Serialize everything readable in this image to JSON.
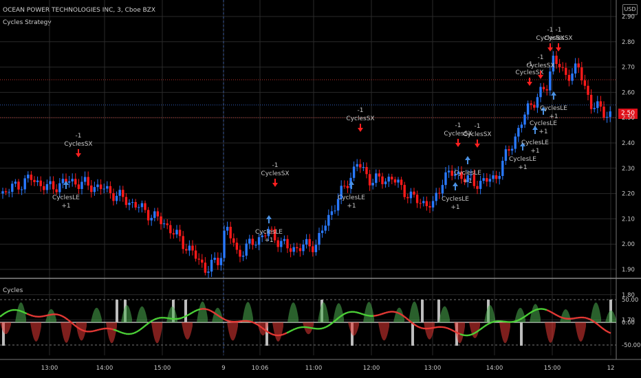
{
  "header": {
    "title": "OCEAN POWER TECHNOLOGIES INC, 3, Cboe BZX",
    "strategy": "Cycles Strategy",
    "currency_button": "USD"
  },
  "price_axis": {
    "ticks": [
      "2.90",
      "2.80",
      "2.70",
      "2.60",
      "2.50",
      "2.40",
      "2.30",
      "2.20",
      "2.10",
      "2.00",
      "1.90",
      "1.80",
      "1.70"
    ],
    "current_price": "2.50",
    "current_price_color": "#e0101a"
  },
  "time_axis": {
    "ticks": [
      "13:00",
      "14:00",
      "15:00",
      "9",
      "10:06",
      "11:00",
      "12:00",
      "13:00",
      "14:00",
      "15:00",
      "12"
    ]
  },
  "indicator": {
    "name": "Cycles",
    "ticks": [
      "50.00",
      "0.00",
      "-50.00"
    ]
  },
  "signals": [
    {
      "kind": "entry",
      "label": "CyclesLE",
      "qty": "+1"
    },
    {
      "kind": "exit",
      "label": "CyclesSX",
      "qty": "-1"
    },
    {
      "kind": "exit",
      "label": "CyclesSX",
      "qty": "-1"
    },
    {
      "kind": "entry",
      "label": "CyclesLE",
      "qty": "+1"
    },
    {
      "kind": "exit",
      "label": "CyclesSX",
      "qty": "-1"
    },
    {
      "kind": "entry",
      "label": "CyclesLE",
      "qty": "+1"
    },
    {
      "kind": "entry",
      "label": "CyclesLE",
      "qty": "+1"
    },
    {
      "kind": "exit",
      "label": "CyclesSX",
      "qty": "-1"
    },
    {
      "kind": "entry",
      "label": "CyclesLE",
      "qty": "+1"
    },
    {
      "kind": "exit",
      "label": "CyclesSX",
      "qty": "-1"
    },
    {
      "kind": "exit",
      "label": "CyclesSX",
      "qty": "-1"
    },
    {
      "kind": "entry",
      "label": "CyclesLE",
      "qty": "+1"
    },
    {
      "kind": "entry",
      "label": "CyclesLE",
      "qty": "+1"
    },
    {
      "kind": "exit",
      "label": "CyclesSX",
      "qty": "-1"
    },
    {
      "kind": "exit",
      "label": "CyclesSX",
      "qty": "-1"
    },
    {
      "kind": "entry",
      "label": "CyclesLE",
      "qty": "+1"
    },
    {
      "kind": "entry",
      "label": "CyclesLE",
      "qty": "+1"
    },
    {
      "kind": "exit",
      "label": "CyclesSX",
      "qty": "-1"
    }
  ],
  "colors": {
    "up": "#2979ff",
    "down": "#ff1a1a",
    "entry": "#4a90e2",
    "exit": "#ff2020",
    "osc_up": "#4caf50",
    "osc_down": "#e53935"
  }
}
